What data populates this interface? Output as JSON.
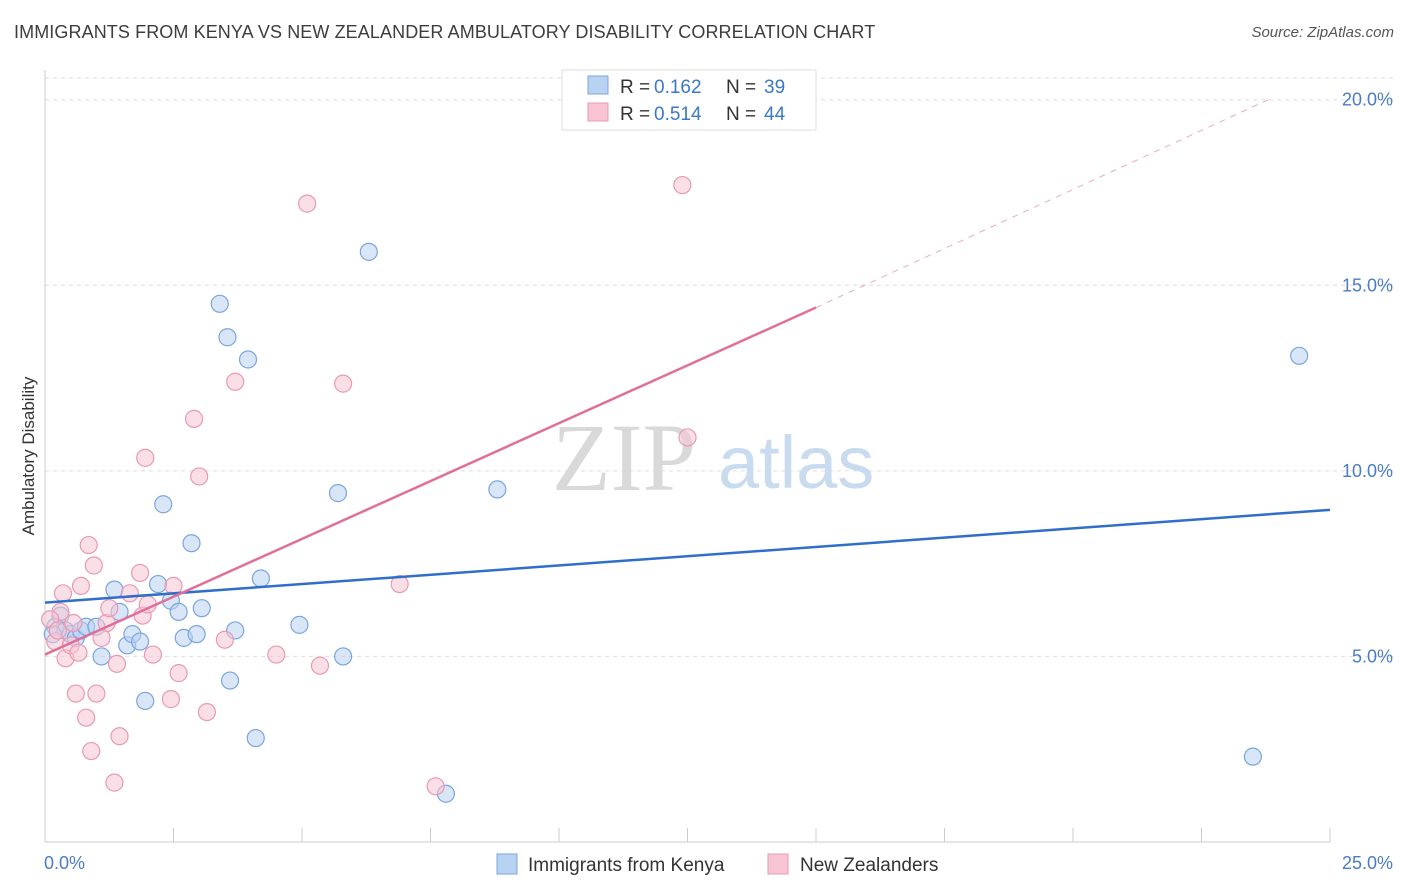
{
  "title": "IMMIGRANTS FROM KENYA VS NEW ZEALANDER AMBULATORY DISABILITY CORRELATION CHART",
  "source": "Source: ZipAtlas.com",
  "watermark": {
    "zip": "ZIP",
    "atlas": "atlas"
  },
  "colors": {
    "blue_fill": "#b8d2f2",
    "blue_stroke": "#7aa6dd",
    "blue_line": "#2f6fc9",
    "pink_fill": "#f7c4d4",
    "pink_stroke": "#e89ab4",
    "pink_line": "#e0709a",
    "grid": "#dddddd",
    "tick_label": "#4a7cc7"
  },
  "legend": {
    "rows": [
      {
        "r_label": "R =",
        "r_value": "0.162",
        "n_label": "N =",
        "n_value": "39"
      },
      {
        "r_label": "R =",
        "r_value": "0.514",
        "n_label": "N =",
        "n_value": "44"
      }
    ]
  },
  "chart_data": {
    "type": "scatter",
    "title": "IMMIGRANTS FROM KENYA VS NEW ZEALANDER AMBULATORY DISABILITY CORRELATION CHART",
    "xlabel": "",
    "ylabel": "Ambulatory Disability",
    "xlim": [
      0,
      25
    ],
    "ylim": [
      0,
      20.8
    ],
    "x_tick_labels": [
      "0.0%",
      "25.0%"
    ],
    "y_ticks": [
      5,
      10,
      15,
      20
    ],
    "y_tick_labels": [
      "5.0%",
      "10.0%",
      "15.0%",
      "20.0%"
    ],
    "grid": "horizontal dashed",
    "legend_position": "top-center",
    "series": [
      {
        "name": "Immigrants from Kenya",
        "color": "#b8d2f2",
        "points": [
          [
            0.2,
            5.8
          ],
          [
            0.3,
            6.1
          ],
          [
            0.4,
            5.7
          ],
          [
            0.5,
            5.6
          ],
          [
            0.6,
            5.5
          ],
          [
            0.7,
            5.7
          ],
          [
            0.8,
            5.8
          ],
          [
            1.1,
            5.0
          ],
          [
            1.35,
            6.8
          ],
          [
            1.45,
            6.2
          ],
          [
            1.6,
            5.3
          ],
          [
            1.7,
            5.6
          ],
          [
            1.85,
            5.4
          ],
          [
            1.95,
            3.8
          ],
          [
            2.2,
            6.95
          ],
          [
            2.3,
            9.1
          ],
          [
            2.45,
            6.5
          ],
          [
            2.6,
            6.2
          ],
          [
            2.7,
            5.5
          ],
          [
            2.85,
            8.05
          ],
          [
            2.95,
            5.6
          ],
          [
            3.05,
            6.3
          ],
          [
            3.4,
            14.5
          ],
          [
            3.55,
            13.6
          ],
          [
            3.6,
            4.35
          ],
          [
            3.7,
            5.7
          ],
          [
            3.95,
            13.0
          ],
          [
            4.1,
            2.8
          ],
          [
            4.2,
            7.1
          ],
          [
            4.95,
            5.85
          ],
          [
            5.7,
            9.4
          ],
          [
            5.8,
            5.0
          ],
          [
            6.3,
            15.9
          ],
          [
            7.8,
            1.3
          ],
          [
            8.8,
            9.5
          ],
          [
            24.4,
            13.1
          ],
          [
            23.5,
            2.3
          ],
          [
            0.15,
            5.6
          ],
          [
            1.0,
            5.8
          ]
        ],
        "trend": {
          "x": [
            0,
            25
          ],
          "y": [
            6.45,
            8.95
          ]
        }
      },
      {
        "name": "New Zealanders",
        "color": "#f7c4d4",
        "points": [
          [
            0.2,
            5.4
          ],
          [
            0.3,
            6.2
          ],
          [
            0.35,
            6.7
          ],
          [
            0.4,
            4.95
          ],
          [
            0.5,
            5.3
          ],
          [
            0.55,
            5.9
          ],
          [
            0.6,
            4.0
          ],
          [
            0.7,
            6.9
          ],
          [
            0.8,
            3.35
          ],
          [
            0.85,
            8.0
          ],
          [
            0.9,
            2.45
          ],
          [
            0.95,
            7.45
          ],
          [
            1.0,
            4.0
          ],
          [
            1.2,
            5.9
          ],
          [
            1.35,
            1.6
          ],
          [
            1.4,
            4.8
          ],
          [
            1.45,
            2.85
          ],
          [
            1.65,
            6.7
          ],
          [
            1.85,
            7.25
          ],
          [
            1.9,
            6.1
          ],
          [
            1.95,
            10.35
          ],
          [
            2.1,
            5.05
          ],
          [
            2.45,
            3.85
          ],
          [
            2.5,
            6.9
          ],
          [
            2.6,
            4.55
          ],
          [
            2.9,
            11.4
          ],
          [
            3.0,
            9.85
          ],
          [
            3.15,
            3.5
          ],
          [
            3.5,
            5.45
          ],
          [
            3.7,
            12.4
          ],
          [
            4.5,
            5.05
          ],
          [
            5.1,
            17.2
          ],
          [
            5.35,
            4.75
          ],
          [
            5.8,
            12.35
          ],
          [
            6.9,
            6.95
          ],
          [
            7.6,
            1.5
          ],
          [
            12.4,
            17.7
          ],
          [
            12.5,
            10.9
          ],
          [
            0.1,
            6.0
          ],
          [
            0.25,
            5.7
          ],
          [
            1.25,
            6.3
          ],
          [
            2.0,
            6.4
          ],
          [
            0.65,
            5.1
          ],
          [
            1.1,
            5.5
          ]
        ],
        "trend": {
          "x": [
            0,
            15
          ],
          "y": [
            5.05,
            14.4
          ]
        },
        "trend_extension": {
          "x": [
            15,
            23.8
          ],
          "y": [
            14.4,
            20.0
          ]
        }
      }
    ]
  },
  "bottom_legend": [
    {
      "label": "Immigrants from Kenya"
    },
    {
      "label": "New Zealanders"
    }
  ]
}
